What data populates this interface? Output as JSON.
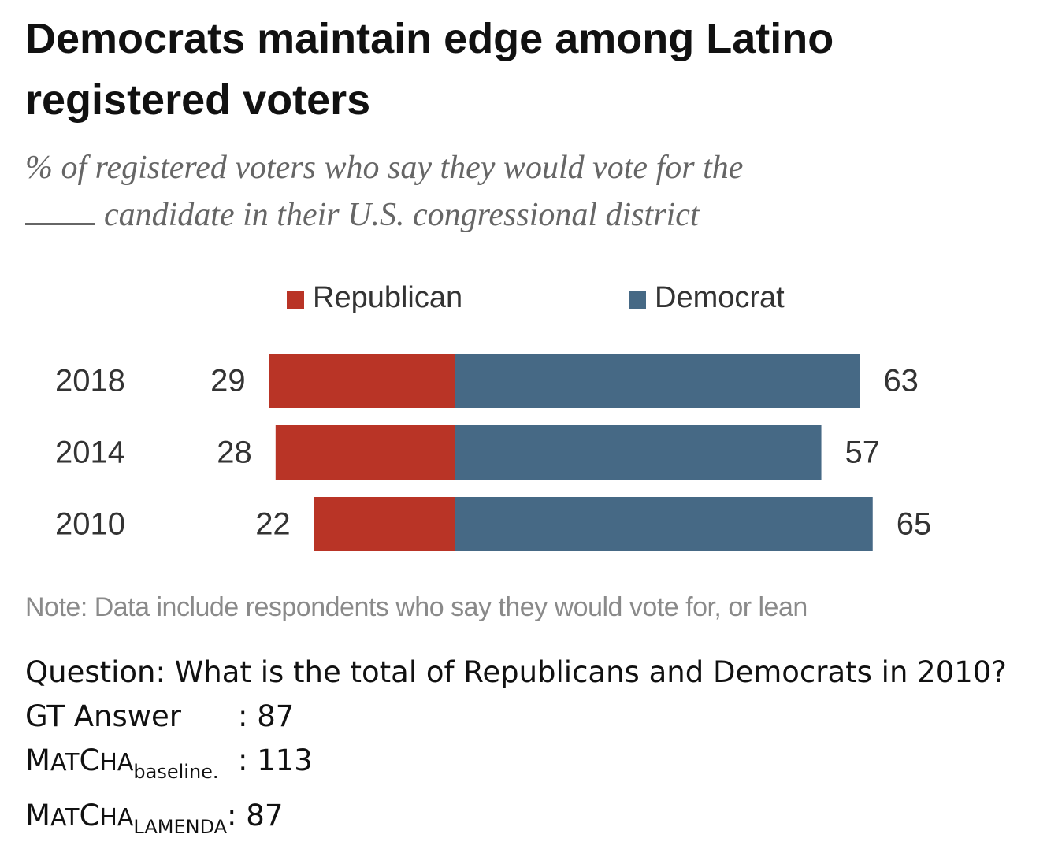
{
  "chart_data": {
    "type": "bar",
    "stacked": true,
    "orientation": "horizontal",
    "title": "Democrats maintain edge among Latino registered voters",
    "subtitle": "% of registered voters who say they would vote for the ___ candidate in their U.S. congressional district",
    "categories": [
      "2018",
      "2014",
      "2010"
    ],
    "series": [
      {
        "name": "Republican",
        "color": "#b93426",
        "values": [
          29,
          28,
          22
        ]
      },
      {
        "name": "Democrat",
        "color": "#466985",
        "values": [
          63,
          57,
          65
        ]
      }
    ],
    "legend": {
      "position": "top",
      "items": [
        "Republican",
        "Democrat"
      ]
    },
    "grid": false,
    "note": "Note: Data include respondents who say they would vote for, or lean"
  },
  "header": {
    "title": "Democrats maintain edge among Latino registered voters",
    "subtitle_main": "% of registered voters who say they would vote for the",
    "subtitle_blank": "___",
    "subtitle_rest": "candidate in their U.S. congressional district"
  },
  "note": "Note: Data include respondents who say they would vote for, or lean",
  "qa": {
    "question": "Question: What is the total of Republicans and Democrats in 2010?",
    "gt_label": "GT Answer",
    "gt_value": ": 87",
    "model_m": "M",
    "model_rest": "AT",
    "model_c": "C",
    "model_ha": "HA",
    "baseline_sub": "baseline.",
    "baseline_value": ": 113",
    "lamenda_sub": "LAMENDA",
    "lamenda_value": ": 87"
  }
}
